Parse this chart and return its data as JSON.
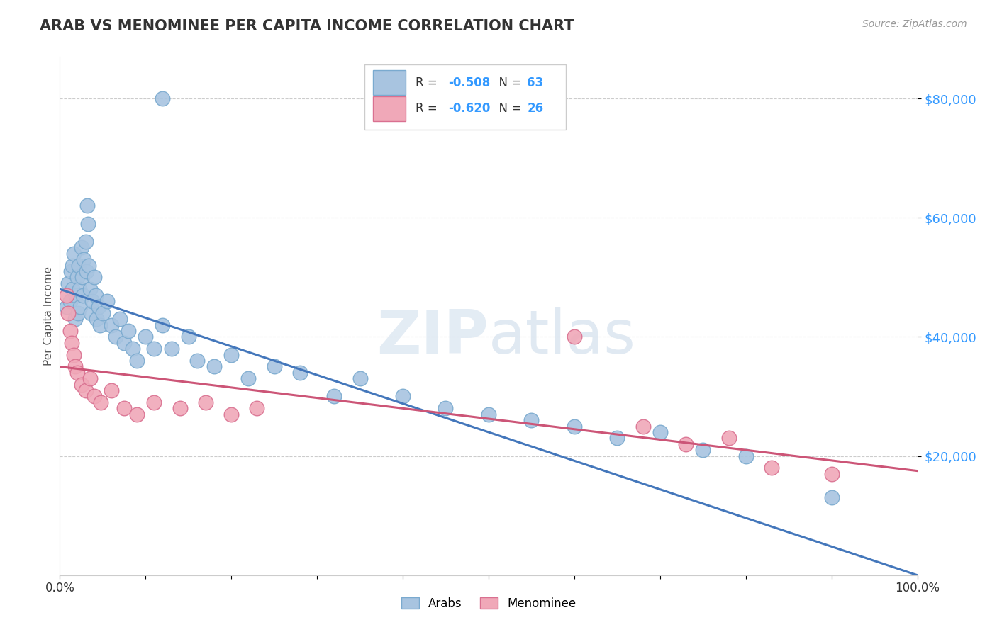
{
  "title": "ARAB VS MENOMINEE PER CAPITA INCOME CORRELATION CHART",
  "source": "Source: ZipAtlas.com",
  "ylabel": "Per Capita Income",
  "xlim": [
    0.0,
    1.0
  ],
  "ylim": [
    0,
    87000
  ],
  "yticks": [
    20000,
    40000,
    60000,
    80000
  ],
  "ytick_labels": [
    "$20,000",
    "$40,000",
    "$60,000",
    "$80,000"
  ],
  "arab_R": -0.508,
  "arab_N": 63,
  "menominee_R": -0.62,
  "menominee_N": 26,
  "arab_face": "#A8C4E0",
  "arab_edge": "#7AAACF",
  "menominee_face": "#F0A8B8",
  "menominee_edge": "#D97090",
  "line_arab_color": "#4477BB",
  "line_menominee_color": "#CC5577",
  "watermark_zip": "ZIP",
  "watermark_atlas": "atlas",
  "background_color": "#FFFFFF",
  "grid_color": "#CCCCCC",
  "arab_x": [
    0.008,
    0.01,
    0.012,
    0.013,
    0.015,
    0.015,
    0.016,
    0.018,
    0.019,
    0.02,
    0.021,
    0.022,
    0.023,
    0.024,
    0.025,
    0.026,
    0.027,
    0.028,
    0.03,
    0.031,
    0.032,
    0.033,
    0.034,
    0.035,
    0.036,
    0.038,
    0.04,
    0.042,
    0.043,
    0.045,
    0.047,
    0.05,
    0.055,
    0.06,
    0.065,
    0.07,
    0.075,
    0.08,
    0.085,
    0.09,
    0.1,
    0.11,
    0.12,
    0.13,
    0.15,
    0.16,
    0.18,
    0.2,
    0.22,
    0.25,
    0.28,
    0.32,
    0.35,
    0.4,
    0.45,
    0.5,
    0.55,
    0.6,
    0.65,
    0.7,
    0.75,
    0.8,
    0.9
  ],
  "arab_y": [
    45000,
    49000,
    46000,
    51000,
    52000,
    48000,
    54000,
    43000,
    47000,
    50000,
    44000,
    52000,
    48000,
    45000,
    55000,
    50000,
    47000,
    53000,
    56000,
    51000,
    62000,
    59000,
    52000,
    48000,
    44000,
    46000,
    50000,
    47000,
    43000,
    45000,
    42000,
    44000,
    46000,
    42000,
    40000,
    43000,
    39000,
    41000,
    38000,
    36000,
    40000,
    38000,
    42000,
    38000,
    40000,
    36000,
    35000,
    37000,
    33000,
    35000,
    34000,
    30000,
    33000,
    30000,
    28000,
    27000,
    26000,
    25000,
    23000,
    24000,
    21000,
    20000,
    13000
  ],
  "arab_outlier_x": [
    0.12
  ],
  "arab_outlier_y": [
    80000
  ],
  "menominee_x": [
    0.008,
    0.01,
    0.012,
    0.014,
    0.016,
    0.018,
    0.02,
    0.025,
    0.03,
    0.035,
    0.04,
    0.048,
    0.06,
    0.075,
    0.09,
    0.11,
    0.14,
    0.17,
    0.2,
    0.23,
    0.6,
    0.68,
    0.73,
    0.78,
    0.83,
    0.9
  ],
  "menominee_y": [
    47000,
    44000,
    41000,
    39000,
    37000,
    35000,
    34000,
    32000,
    31000,
    33000,
    30000,
    29000,
    31000,
    28000,
    27000,
    29000,
    28000,
    29000,
    27000,
    28000,
    40000,
    25000,
    22000,
    23000,
    18000,
    17000
  ],
  "arab_line_x0": 0.0,
  "arab_line_y0": 48000,
  "arab_line_x1": 1.0,
  "arab_line_y1": 0,
  "menominee_line_x0": 0.0,
  "menominee_line_y0": 35000,
  "menominee_line_x1": 1.0,
  "menominee_line_y1": 17500
}
